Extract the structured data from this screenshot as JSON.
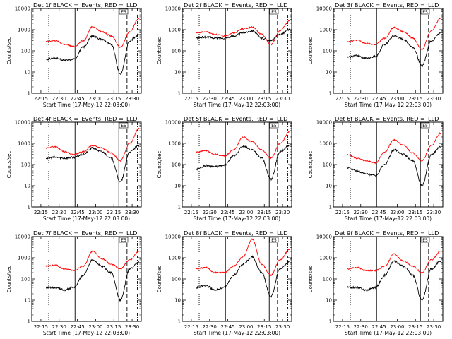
{
  "chart_data": [
    {
      "type": "line",
      "title": "Det 1f BLACK =_Events, RED =_LLD",
      "xlabel": "Start Time (17-May-12 22:03:00)",
      "ylabel": "Counts/sec",
      "x_ticklabels": [
        "22:15",
        "22:30",
        "22:45",
        "23:00",
        "23:15",
        "23:30"
      ],
      "y_ticklabels": [
        "1",
        "10",
        "100",
        "1000",
        "10000"
      ],
      "yscale": "log",
      "ylim": [
        1,
        10000
      ],
      "x": [
        22.15,
        22.25,
        22.35,
        22.45,
        22.55,
        23.0,
        23.1,
        23.15,
        23.2,
        23.25,
        23.3
      ],
      "series": [
        {
          "color": "#000000",
          "values": [
            40,
            45,
            35,
            40,
            150,
            500,
            350,
            200,
            8,
            300,
            600
          ]
        },
        {
          "color": "#ff0000",
          "values": [
            280,
            300,
            200,
            160,
            300,
            1400,
            800,
            500,
            150,
            800,
            3500
          ]
        }
      ],
      "annotations": [
        {
          "text": "E5"
        }
      ]
    },
    {
      "type": "line",
      "title": "Det 2f BLACK =_Events, RED =_LLD",
      "xlabel": "Start Time (17-May-12 22:03:00)",
      "ylabel": "Counts/sec",
      "x_ticklabels": [
        "22:15",
        "22:30",
        "22:45",
        "23:00",
        "23:15",
        "23:30"
      ],
      "y_ticklabels": [
        "1",
        "10",
        "100",
        "1000",
        "10000"
      ],
      "yscale": "log",
      "ylim": [
        1,
        10000
      ],
      "x": [
        22.15,
        22.25,
        22.35,
        22.45,
        22.55,
        23.0,
        23.1,
        23.15,
        23.2,
        23.25,
        23.3
      ],
      "series": [
        {
          "color": "#000000",
          "values": [
            400,
            450,
            400,
            400,
            500,
            700,
            900,
            400,
            300,
            600,
            1000
          ]
        },
        {
          "color": "#ff0000",
          "values": [
            700,
            800,
            600,
            500,
            700,
            1100,
            1300,
            600,
            200,
            900,
            2600
          ]
        }
      ],
      "annotations": [
        {
          "text": "E5"
        }
      ]
    },
    {
      "type": "line",
      "title": "Det 3f BLACK =_Events, RED =_LLD",
      "xlabel": "Start Time (17-May-12 22:03:00)",
      "ylabel": "Counts/sec",
      "x_ticklabels": [
        "22:15",
        "22:30",
        "22:45",
        "23:00",
        "23:15",
        "23:30"
      ],
      "y_ticklabels": [
        "1",
        "10",
        "100",
        "1000",
        "10000"
      ],
      "yscale": "log",
      "ylim": [
        1,
        10000
      ],
      "x": [
        22.15,
        22.25,
        22.35,
        22.45,
        22.55,
        23.0,
        23.1,
        23.15,
        23.2,
        23.25,
        23.3
      ],
      "series": [
        {
          "color": "#000000",
          "values": [
            50,
            60,
            45,
            55,
            200,
            500,
            350,
            150,
            20,
            300,
            700
          ]
        },
        {
          "color": "#ff0000",
          "values": [
            280,
            320,
            220,
            200,
            400,
            1300,
            800,
            400,
            120,
            900,
            3500
          ]
        }
      ],
      "annotations": [
        {
          "text": "E5"
        }
      ]
    },
    {
      "type": "line",
      "title": "Det 4f BLACK =_Events, RED =_LLD",
      "xlabel": "Start Time (17-May-12 22:03:00)",
      "ylabel": "Counts/sec",
      "x_ticklabels": [
        "22:15",
        "22:30",
        "22:45",
        "23:00",
        "23:15",
        "23:30"
      ],
      "y_ticklabels": [
        "1",
        "10",
        "100",
        "1000",
        "10000"
      ],
      "yscale": "log",
      "ylim": [
        1,
        10000
      ],
      "x": [
        22.15,
        22.25,
        22.35,
        22.45,
        22.55,
        23.0,
        23.1,
        23.15,
        23.2,
        23.25,
        23.3
      ],
      "series": [
        {
          "color": "#000000",
          "values": [
            200,
            220,
            200,
            220,
            300,
            600,
            400,
            200,
            15,
            400,
            800
          ]
        },
        {
          "color": "#ff0000",
          "values": [
            600,
            700,
            400,
            300,
            400,
            800,
            600,
            350,
            150,
            1000,
            5000
          ]
        }
      ],
      "annotations": [
        {
          "text": "E5"
        }
      ]
    },
    {
      "type": "line",
      "title": "Det 5f BLACK =_Events, RED =_LLD",
      "xlabel": "Start Time (17-May-12 22:03:00)",
      "ylabel": "Counts/sec",
      "x_ticklabels": [
        "22:15",
        "22:30",
        "22:45",
        "23:00",
        "23:15",
        "23:30"
      ],
      "y_ticklabels": [
        "1",
        "10",
        "100",
        "1000",
        "10000"
      ],
      "yscale": "log",
      "ylim": [
        1,
        10000
      ],
      "x": [
        22.15,
        22.25,
        22.35,
        22.45,
        22.55,
        23.0,
        23.1,
        23.15,
        23.2,
        23.25,
        23.3
      ],
      "series": [
        {
          "color": "#000000",
          "values": [
            60,
            90,
            80,
            90,
            250,
            700,
            500,
            200,
            20,
            400,
            800
          ]
        },
        {
          "color": "#ff0000",
          "values": [
            400,
            450,
            300,
            250,
            500,
            2000,
            1200,
            500,
            200,
            1000,
            3500
          ]
        }
      ],
      "annotations": [
        {
          "text": "E5"
        }
      ]
    },
    {
      "type": "line",
      "title": "Det 6f BLACK =_Events, RED =_LLD",
      "xlabel": "Start Time (17-May-12 22:03:00)",
      "ylabel": "Counts/sec",
      "x_ticklabels": [
        "22:15",
        "22:30",
        "22:45",
        "23:00",
        "23:15",
        "23:30"
      ],
      "y_ticklabels": [
        "1",
        "10",
        "100",
        "1000",
        "10000"
      ],
      "yscale": "log",
      "ylim": [
        1,
        10000
      ],
      "x": [
        22.15,
        22.25,
        22.35,
        22.45,
        22.55,
        23.0,
        23.1,
        23.15,
        23.2,
        23.25,
        23.3
      ],
      "series": [
        {
          "color": "#000000",
          "values": [
            70,
            50,
            35,
            30,
            100,
            500,
            300,
            150,
            10,
            300,
            700
          ]
        },
        {
          "color": "#ff0000",
          "values": [
            300,
            200,
            150,
            120,
            400,
            1500,
            800,
            350,
            150,
            800,
            3000
          ]
        }
      ],
      "annotations": [
        {
          "text": "E5"
        }
      ]
    },
    {
      "type": "line",
      "title": "Det 7f BLACK =_Events, RED =_LLD",
      "xlabel": "Start Time (17-May-12 22:03:00)",
      "ylabel": "Counts/sec",
      "x_ticklabels": [
        "22:15",
        "22:30",
        "22:45",
        "23:00",
        "23:15",
        "23:30"
      ],
      "y_ticklabels": [
        "1",
        "10",
        "100",
        "1000",
        "10000"
      ],
      "yscale": "log",
      "ylim": [
        1,
        10000
      ],
      "x": [
        22.15,
        22.25,
        22.35,
        22.45,
        22.55,
        23.0,
        23.1,
        23.15,
        23.2,
        23.25,
        23.3
      ],
      "series": [
        {
          "color": "#000000",
          "values": [
            40,
            40,
            30,
            40,
            150,
            800,
            400,
            200,
            10,
            300,
            600
          ]
        },
        {
          "color": "#ff0000",
          "values": [
            400,
            450,
            300,
            250,
            400,
            2000,
            900,
            500,
            300,
            800,
            2000
          ]
        }
      ],
      "annotations": [
        {
          "text": "E5"
        }
      ]
    },
    {
      "type": "line",
      "title": "Det 8f BLACK =_Events, RED =_LLD",
      "xlabel": "Start Time (17-May-12 22:03:00)",
      "ylabel": "Counts/sec",
      "x_ticklabels": [
        "22:15",
        "22:30",
        "22:45",
        "23:00",
        "23:15",
        "23:30"
      ],
      "y_ticklabels": [
        "1",
        "10",
        "100",
        "1000",
        "10000"
      ],
      "yscale": "log",
      "ylim": [
        1,
        10000
      ],
      "x": [
        22.15,
        22.25,
        22.35,
        22.45,
        22.55,
        23.0,
        23.1,
        23.15,
        23.2,
        23.25,
        23.3
      ],
      "series": [
        {
          "color": "#000000",
          "values": [
            40,
            50,
            30,
            40,
            150,
            500,
            1100,
            200,
            15,
            300,
            700
          ]
        },
        {
          "color": "#ff0000",
          "values": [
            300,
            350,
            200,
            200,
            400,
            1100,
            7500,
            500,
            150,
            800,
            2500
          ]
        }
      ],
      "annotations": [
        {
          "text": "E5"
        }
      ]
    },
    {
      "type": "line",
      "title": "Det 9f BLACK =_Events, RED =_LLD",
      "xlabel": "Start Time (17-May-12 22:03:00)",
      "ylabel": "Counts/sec",
      "x_ticklabels": [
        "22:15",
        "22:30",
        "22:45",
        "23:00",
        "23:15",
        "23:30"
      ],
      "y_ticklabels": [
        "1",
        "10",
        "100",
        "1000",
        "10000"
      ],
      "yscale": "log",
      "ylim": [
        1,
        10000
      ],
      "x": [
        22.15,
        22.25,
        22.35,
        22.45,
        22.55,
        23.0,
        23.1,
        23.15,
        23.2,
        23.25,
        23.3
      ],
      "series": [
        {
          "color": "#000000",
          "values": [
            40,
            40,
            30,
            40,
            150,
            700,
            400,
            150,
            10,
            300,
            700
          ]
        },
        {
          "color": "#ff0000",
          "values": [
            300,
            350,
            250,
            250,
            400,
            1500,
            700,
            400,
            200,
            800,
            2000
          ]
        }
      ],
      "annotations": [
        {
          "text": "E5"
        }
      ]
    }
  ]
}
